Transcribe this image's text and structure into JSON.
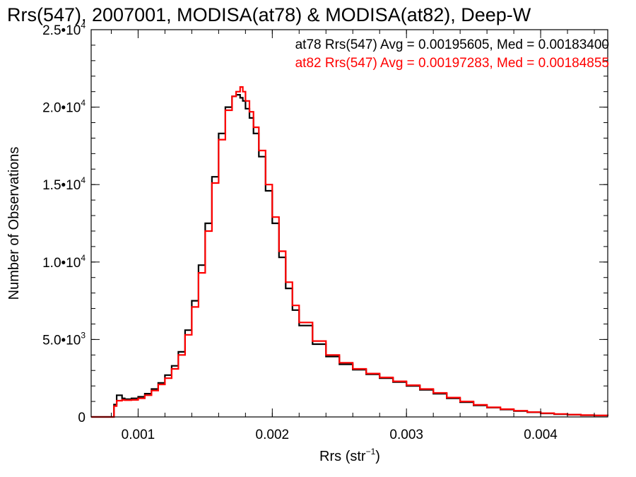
{
  "chart_data": {
    "type": "line",
    "title": "Rrs(547), 2007001, MODISA(at78) & MODISA(at82), Deep-W",
    "xlabel": "Rrs (str",
    "xlabel_superscript": "−1",
    "xlabel_close": ")",
    "ylabel": "Number of Observations",
    "xlim": [
      0.00065,
      0.0045
    ],
    "ylim": [
      0,
      25000
    ],
    "xticks": [
      {
        "value": 0.001,
        "label": "0.001"
      },
      {
        "value": 0.002,
        "label": "0.002"
      },
      {
        "value": 0.003,
        "label": "0.003"
      },
      {
        "value": 0.004,
        "label": "0.004"
      }
    ],
    "yticks": [
      {
        "value": 0,
        "label": "0",
        "exp": ""
      },
      {
        "value": 5000,
        "label": "5.0•10",
        "exp": "3"
      },
      {
        "value": 10000,
        "label": "1.0•10",
        "exp": "4"
      },
      {
        "value": 15000,
        "label": "1.5•10",
        "exp": "4"
      },
      {
        "value": 20000,
        "label": "2.0•10",
        "exp": "4"
      },
      {
        "value": 25000,
        "label": "2.5•10",
        "exp": "4"
      }
    ],
    "grid": false,
    "legend_placement": "top-right",
    "series": [
      {
        "label": "at78 Rrs(547) Avg = 0.00195605, Med = 0.00183400",
        "color": "#000000",
        "x": [
          0.00065,
          0.0008,
          0.00082,
          0.00084,
          0.00088,
          0.0009,
          0.00095,
          0.001,
          0.00105,
          0.0011,
          0.00115,
          0.0012,
          0.00125,
          0.0013,
          0.00135,
          0.0014,
          0.00145,
          0.0015,
          0.00155,
          0.0016,
          0.00165,
          0.0017,
          0.00173,
          0.00176,
          0.00178,
          0.0018,
          0.00183,
          0.00186,
          0.0019,
          0.00195,
          0.002,
          0.00205,
          0.0021,
          0.00215,
          0.0022,
          0.0023,
          0.0024,
          0.0025,
          0.0026,
          0.0027,
          0.0028,
          0.0029,
          0.003,
          0.0031,
          0.0032,
          0.0033,
          0.0034,
          0.0035,
          0.0036,
          0.0037,
          0.0038,
          0.0039,
          0.004,
          0.0041,
          0.0042,
          0.0043,
          0.0044,
          0.0045
        ],
        "y": [
          0,
          0,
          800,
          1400,
          1200,
          1150,
          1200,
          1300,
          1500,
          1800,
          2200,
          2700,
          3300,
          4200,
          5600,
          7500,
          9800,
          12500,
          15500,
          18300,
          20000,
          20700,
          20800,
          20600,
          20400,
          19900,
          19300,
          18300,
          16800,
          14600,
          12500,
          10300,
          8300,
          6900,
          5900,
          4700,
          3900,
          3400,
          3050,
          2750,
          2500,
          2250,
          2000,
          1750,
          1500,
          1200,
          950,
          750,
          600,
          480,
          380,
          300,
          230,
          180,
          140,
          110,
          90,
          80
        ]
      },
      {
        "label": "at82 Rrs(547) Avg = 0.00197283, Med = 0.00184855",
        "color": "#ff0000",
        "x": [
          0.00065,
          0.0008,
          0.00082,
          0.00084,
          0.00088,
          0.0009,
          0.00095,
          0.001,
          0.00105,
          0.0011,
          0.00115,
          0.0012,
          0.00125,
          0.0013,
          0.00135,
          0.0014,
          0.00145,
          0.0015,
          0.00155,
          0.0016,
          0.00165,
          0.0017,
          0.00173,
          0.00176,
          0.00178,
          0.0018,
          0.00183,
          0.00186,
          0.0019,
          0.00195,
          0.002,
          0.00205,
          0.0021,
          0.00215,
          0.0022,
          0.0023,
          0.0024,
          0.0025,
          0.0026,
          0.0027,
          0.0028,
          0.0029,
          0.003,
          0.0031,
          0.0032,
          0.0033,
          0.0034,
          0.0035,
          0.0036,
          0.0037,
          0.0038,
          0.0039,
          0.004,
          0.0041,
          0.0042,
          0.0043,
          0.0044,
          0.0045
        ],
        "y": [
          0,
          0,
          700,
          1050,
          1100,
          1080,
          1100,
          1200,
          1400,
          1700,
          2100,
          2500,
          3100,
          4000,
          5300,
          7100,
          9300,
          12000,
          15100,
          17900,
          19800,
          20700,
          21000,
          21300,
          21000,
          20400,
          19700,
          18700,
          17200,
          15000,
          12900,
          10700,
          8700,
          7200,
          6100,
          4900,
          4000,
          3500,
          3100,
          2800,
          2550,
          2300,
          2050,
          1800,
          1550,
          1250,
          1000,
          780,
          620,
          500,
          400,
          310,
          240,
          190,
          150,
          120,
          95,
          85
        ]
      }
    ]
  }
}
